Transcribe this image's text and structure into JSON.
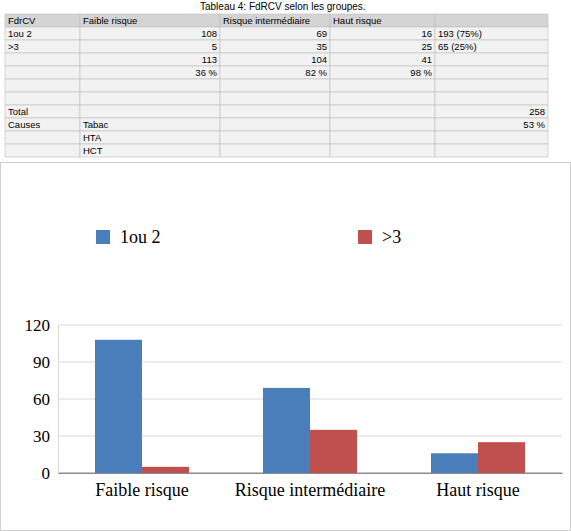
{
  "table": {
    "title": "Tableau 4: FdRCV selon les groupes.",
    "header": [
      "FdrCV",
      "Faible risque",
      "Risque intermédiaire",
      "Haut risque",
      null
    ],
    "rows": [
      [
        "1ou 2",
        108,
        69,
        16,
        "193 (75%)"
      ],
      [
        ">3",
        5,
        35,
        25,
        "65 (25%)"
      ],
      [
        null,
        113,
        104,
        41,
        null
      ],
      [
        null,
        "36 %",
        "82 %",
        "98 %",
        null
      ],
      [
        null,
        null,
        null,
        null,
        null
      ],
      [
        null,
        null,
        null,
        null,
        null
      ],
      [
        "Total",
        null,
        null,
        null,
        258
      ],
      [
        "Causes",
        "Tabac",
        null,
        null,
        "53 %"
      ],
      [
        null,
        "HTA",
        null,
        null,
        null
      ],
      [
        null,
        "HCT",
        null,
        null,
        null
      ]
    ]
  },
  "chart_data": {
    "type": "bar",
    "categories": [
      "Faible risque",
      "Risque intermédiaire",
      "Haut risque"
    ],
    "series": [
      {
        "name": "1ou 2",
        "color": "#4a7ebb",
        "values": [
          108,
          69,
          16
        ]
      },
      {
        "name": ">3",
        "color": "#c0504d",
        "values": [
          5,
          35,
          25
        ]
      }
    ],
    "ylim": [
      0,
      120
    ],
    "yticks": [
      0,
      30,
      60,
      90,
      120
    ],
    "grid": true,
    "legend": "top"
  }
}
